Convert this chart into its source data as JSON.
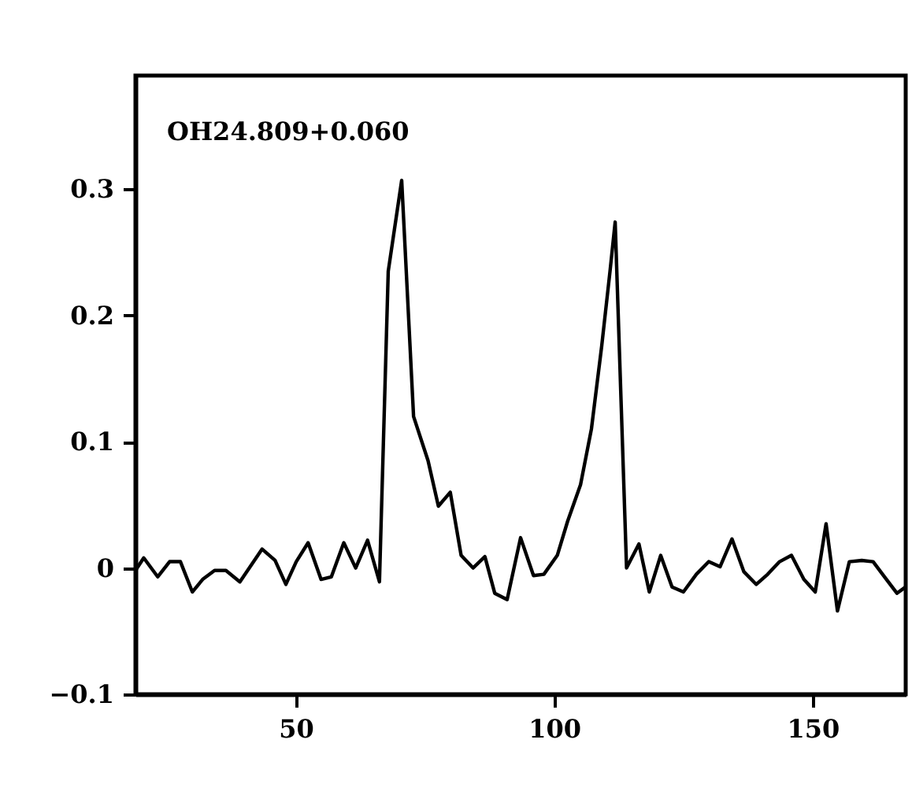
{
  "chart_data": {
    "type": "line",
    "annotations": [
      "OH24.809+0.060"
    ],
    "xlim": [
      19,
      168
    ],
    "xticks": [
      50,
      100,
      150
    ],
    "ylim": [
      -0.1,
      0.39
    ],
    "yticks": [
      {
        "value": -0.1,
        "label": "−0.1"
      },
      0,
      0.1,
      0.2,
      0.3
    ],
    "grid": false,
    "legend": false,
    "marker": "none",
    "line_style": "solid",
    "series": [
      {
        "color": "#000000",
        "x": [
          19,
          20.6,
          23.3,
          25.6,
          27.7,
          30.0,
          32.0,
          34.3,
          36.5,
          39.2,
          43.5,
          46.0,
          48.1,
          50.1,
          52.4,
          54.9,
          56.9,
          59.3,
          61.6,
          63.9,
          66.2,
          67.9,
          70.5,
          72.8,
          75.6,
          77.6,
          79.9,
          82.0,
          84.3,
          86.6,
          88.5,
          90.9,
          93.5,
          96.0,
          98.0,
          100.6,
          102.6,
          105.1,
          107.2,
          109.2,
          110.8,
          111.8,
          114.0,
          116.4,
          118.4,
          120.6,
          122.8,
          125.0,
          127.5,
          129.9,
          132.1,
          134.4,
          136.7,
          139.1,
          141.3,
          143.6,
          145.9,
          148.3,
          150.5,
          152.6,
          154.8,
          157.1,
          159.5,
          161.7,
          163.9,
          166.3,
          168
        ],
        "values": [
          -0.002,
          0.008,
          -0.007,
          0.005,
          0.005,
          -0.019,
          -0.009,
          -0.002,
          -0.002,
          -0.011,
          0.015,
          0.006,
          -0.013,
          0.005,
          0.02,
          -0.009,
          -0.007,
          0.02,
          0.0,
          0.022,
          -0.011,
          0.235,
          0.307,
          0.12,
          0.085,
          0.049,
          0.06,
          0.01,
          0.0,
          0.009,
          -0.02,
          -0.025,
          0.024,
          -0.006,
          -0.005,
          0.01,
          0.037,
          0.066,
          0.11,
          0.176,
          0.235,
          0.274,
          0.0,
          0.019,
          -0.019,
          0.01,
          -0.015,
          -0.019,
          -0.005,
          0.005,
          0.001,
          0.023,
          -0.003,
          -0.013,
          -0.005,
          0.005,
          0.01,
          -0.009,
          -0.019,
          0.035,
          -0.034,
          0.005,
          0.006,
          0.005,
          -0.007,
          -0.02,
          -0.015
        ]
      }
    ]
  }
}
